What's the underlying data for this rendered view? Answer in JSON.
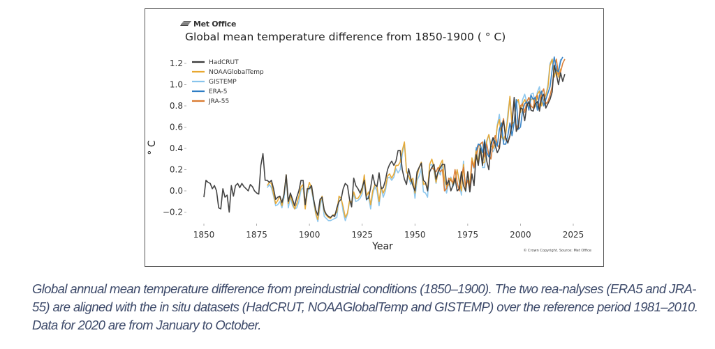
{
  "figure": {
    "logo_text": "Met Office",
    "copyright": "© Crown Copyright. Source: Met Office"
  },
  "caption": "Global annual mean temperature difference from preindustrial conditions (1850–1900). The two rea-nalyses (ERA5 and JRA-55) are aligned with the in situ datasets (HadCRUT, NOAAGlobalTemp and GISTEMP) over the reference period 1981–2010. Data for 2020 are from January to October.",
  "chart_data": {
    "type": "line",
    "title": "Global mean temperature difference from 1850-1900 ( ° C)",
    "xlabel": "Year",
    "ylabel": "° C",
    "xlim": [
      1843,
      2027
    ],
    "ylim": [
      -0.28,
      1.3
    ],
    "xticks": [
      1850,
      1875,
      1900,
      1925,
      1950,
      1975,
      2000,
      2025
    ],
    "yticks": [
      -0.2,
      0.0,
      0.2,
      0.4,
      0.6,
      0.8,
      1.0,
      1.2
    ],
    "ytick_labels": [
      "−0.2",
      "0.0",
      "0.2",
      "0.4",
      "0.6",
      "0.8",
      "1.0",
      "1.2"
    ],
    "grid": false,
    "legend_position": "top-left",
    "series": [
      {
        "name": "HadCRUT",
        "color": "#3a3a3a",
        "start_year": 1850,
        "values": [
          -0.06,
          0.1,
          0.08,
          0.07,
          0.02,
          0.05,
          0.0,
          -0.16,
          -0.17,
          0.02,
          -0.06,
          -0.04,
          -0.2,
          0.05,
          -0.05,
          0.05,
          0.07,
          0.03,
          0.07,
          0.04,
          0.02,
          0.0,
          0.06,
          0.04,
          0.0,
          -0.02,
          -0.03,
          0.24,
          0.35,
          0.1,
          0.1,
          0.08,
          0.1,
          0.02,
          -0.08,
          -0.06,
          -0.05,
          -0.11,
          -0.03,
          0.15,
          -0.1,
          -0.02,
          -0.08,
          -0.14,
          -0.06,
          0.0,
          0.1,
          0.1,
          -0.13,
          0.02,
          0.02,
          0.05,
          -0.08,
          -0.18,
          -0.23,
          -0.08,
          -0.06,
          -0.18,
          -0.22,
          -0.24,
          -0.25,
          -0.23,
          -0.24,
          -0.16,
          -0.1,
          -0.08,
          0.02,
          0.07,
          0.05,
          -0.08,
          -0.15,
          0.12,
          0.05,
          0.02,
          -0.02,
          0.03,
          0.1,
          -0.08,
          -0.07,
          0.03,
          0.15,
          0.06,
          0.04,
          0.17,
          0.02,
          0.03,
          0.1,
          0.2,
          0.25,
          0.28,
          0.24,
          0.28,
          0.38,
          0.38,
          0.2,
          0.11,
          0.06,
          0.21,
          0.12,
          0.05,
          0.0,
          0.18,
          0.22,
          0.26,
          0.1,
          0.08,
          0.0,
          0.18,
          0.22,
          0.25,
          0.11,
          0.18,
          0.22,
          0.25,
          0.25,
          0.06,
          0.1,
          0.0,
          0.05,
          0.12,
          0.0,
          0.02,
          0.18,
          0.05,
          0.0,
          0.18,
          -0.01,
          0.16,
          0.05,
          0.34,
          0.24,
          0.4,
          0.24,
          0.46,
          0.28,
          0.2,
          0.44,
          0.5,
          0.43,
          0.36,
          0.4,
          0.58,
          0.66,
          0.5,
          0.45,
          0.52,
          0.62,
          0.88,
          0.56,
          0.6,
          0.78,
          0.77,
          0.66,
          0.8,
          0.84,
          0.76,
          0.75,
          0.82,
          0.84,
          0.75,
          0.88,
          0.91,
          0.78,
          0.82,
          0.86,
          0.93,
          1.18,
          1.1,
          1.0,
          1.11,
          1.03,
          1.1
        ]
      },
      {
        "name": "NOAAGlobalTemp",
        "color": "#e8a830",
        "start_year": 1880,
        "values": [
          0.05,
          0.08,
          0.07,
          -0.03,
          -0.12,
          -0.09,
          -0.05,
          -0.14,
          -0.02,
          0.15,
          -0.12,
          -0.04,
          -0.11,
          -0.17,
          -0.12,
          -0.05,
          0.04,
          0.06,
          -0.17,
          0.0,
          0.08,
          0.02,
          -0.08,
          -0.21,
          -0.27,
          -0.11,
          -0.05,
          -0.19,
          -0.23,
          -0.25,
          -0.26,
          -0.23,
          -0.22,
          -0.2,
          -0.05,
          -0.07,
          -0.15,
          -0.25,
          -0.21,
          -0.09,
          -0.11,
          -0.01,
          -0.07,
          -0.07,
          -0.04,
          0.0,
          0.15,
          -0.05,
          -0.01,
          -0.13,
          0.0,
          0.06,
          0.04,
          -0.1,
          0.04,
          -0.02,
          0.03,
          0.14,
          0.16,
          0.12,
          0.16,
          0.24,
          0.24,
          0.27,
          0.38,
          0.46,
          0.18,
          0.14,
          0.09,
          0.12,
          -0.02,
          0.14,
          0.22,
          0.27,
          0.06,
          0.07,
          0.01,
          0.25,
          0.3,
          0.22,
          0.08,
          0.18,
          0.25,
          0.29,
          0.1,
          0.04,
          0.06,
          0.12,
          0.06,
          0.09,
          0.2,
          0.09,
          0.0,
          0.25,
          0.0,
          0.18,
          0.04,
          0.31,
          0.23,
          0.38,
          0.26,
          0.44,
          0.26,
          0.27,
          0.47,
          0.53,
          0.43,
          0.4,
          0.44,
          0.61,
          0.67,
          0.51,
          0.48,
          0.54,
          0.68,
          0.89,
          0.63,
          0.65,
          0.84,
          0.86,
          0.74,
          0.82,
          0.86,
          0.8,
          0.8,
          0.86,
          0.87,
          0.79,
          0.91,
          0.94,
          0.8,
          0.86,
          0.9,
          0.97,
          1.18,
          1.24,
          1.07,
          1.15,
          1.07,
          1.15
        ]
      },
      {
        "name": "GISTEMP",
        "color": "#88c4ec",
        "start_year": 1880,
        "values": [
          0.03,
          0.06,
          0.03,
          -0.05,
          -0.14,
          -0.13,
          -0.1,
          -0.16,
          -0.06,
          0.14,
          -0.16,
          -0.06,
          -0.14,
          -0.17,
          -0.16,
          -0.1,
          0.01,
          0.03,
          -0.15,
          -0.03,
          0.04,
          0.01,
          -0.11,
          -0.22,
          -0.29,
          -0.15,
          -0.06,
          -0.24,
          -0.26,
          -0.28,
          -0.28,
          -0.27,
          -0.26,
          -0.25,
          -0.07,
          -0.06,
          -0.2,
          -0.28,
          -0.22,
          -0.1,
          -0.12,
          -0.03,
          -0.1,
          -0.09,
          -0.07,
          -0.03,
          0.14,
          -0.09,
          -0.05,
          -0.17,
          -0.03,
          0.04,
          0.0,
          -0.14,
          0.03,
          -0.06,
          0.0,
          0.12,
          0.13,
          0.1,
          0.13,
          0.21,
          0.17,
          0.2,
          0.34,
          0.45,
          0.19,
          0.14,
          0.06,
          0.11,
          -0.07,
          0.1,
          0.14,
          0.21,
          -0.01,
          -0.02,
          -0.06,
          0.24,
          0.25,
          0.19,
          0.07,
          0.19,
          0.15,
          0.26,
          0.05,
          -0.02,
          0.08,
          0.13,
          0.04,
          0.09,
          0.2,
          0.08,
          -0.04,
          0.28,
          -0.01,
          0.14,
          -0.01,
          0.27,
          0.21,
          0.41,
          0.29,
          0.45,
          0.22,
          0.22,
          0.46,
          0.53,
          0.39,
          0.37,
          0.41,
          0.62,
          0.72,
          0.53,
          0.46,
          0.52,
          0.73,
          0.88,
          0.6,
          0.64,
          0.82,
          0.85,
          0.74,
          0.86,
          0.91,
          0.83,
          0.82,
          0.91,
          0.92,
          0.82,
          0.93,
          0.98,
          0.82,
          0.86,
          0.9,
          1.0,
          1.2,
          1.24,
          1.1,
          1.17,
          1.12,
          1.24
        ]
      },
      {
        "name": "ERA-5",
        "color": "#2e7dc4",
        "start_year": 1979,
        "values": [
          0.38,
          0.44,
          0.43,
          0.36,
          0.48,
          0.36,
          0.32,
          0.42,
          0.5,
          0.46,
          0.42,
          0.58,
          0.64,
          0.44,
          0.44,
          0.52,
          0.64,
          0.52,
          0.64,
          0.86,
          0.58,
          0.6,
          0.76,
          0.82,
          0.84,
          0.76,
          0.9,
          0.86,
          0.88,
          0.76,
          0.9,
          0.94,
          0.8,
          0.86,
          0.92,
          0.98,
          1.14,
          1.26,
          1.14,
          1.12,
          1.22,
          1.26
        ]
      },
      {
        "name": "JRA-55",
        "color": "#d97a30",
        "start_year": 1958,
        "values": [
          0.22,
          0.2,
          0.18,
          0.22,
          0.18,
          0.2,
          0.0,
          0.02,
          0.12,
          0.1,
          0.08,
          0.2,
          0.08,
          0.0,
          0.14,
          0.22,
          0.04,
          0.1,
          0.0,
          0.28,
          0.22,
          0.32,
          0.42,
          0.44,
          0.46,
          0.32,
          0.44,
          0.34,
          0.3,
          0.44,
          0.52,
          0.44,
          0.4,
          0.6,
          0.68,
          0.48,
          0.46,
          0.52,
          0.66,
          0.86,
          0.58,
          0.64,
          0.8,
          0.82,
          0.74,
          0.84,
          0.88,
          0.8,
          0.78,
          0.88,
          0.9,
          0.78,
          0.92,
          0.96,
          0.82,
          0.84,
          0.9,
          0.98,
          1.16,
          1.24,
          1.1,
          1.12,
          1.2,
          1.24
        ]
      }
    ]
  }
}
